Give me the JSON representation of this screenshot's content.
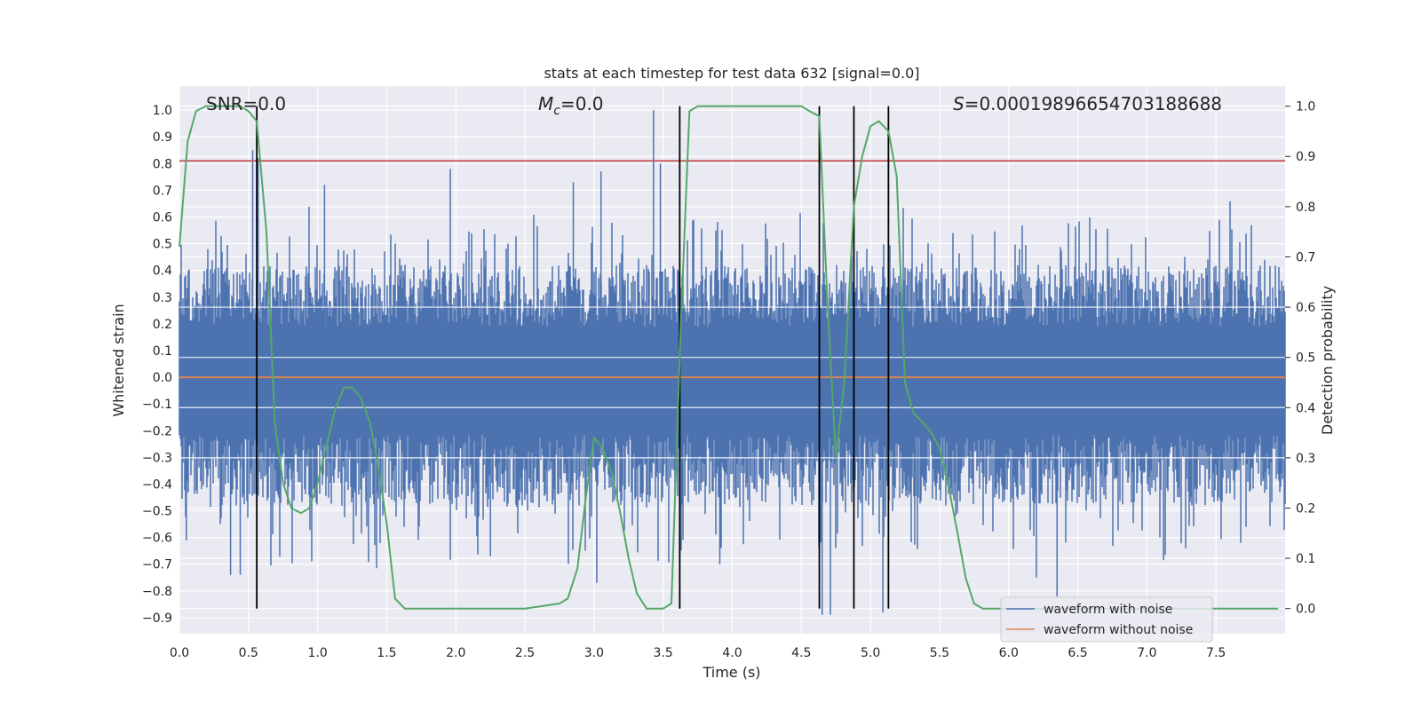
{
  "chart_data": {
    "type": "line",
    "title": "stats at each timestep for test data 632 [signal=0.0]",
    "xlabel": "Time (s)",
    "ylabel_left": "Whitened strain",
    "ylabel_right": "Detection probability",
    "xlim": [
      0.0,
      8.0
    ],
    "ylim_left": [
      -0.96,
      1.09
    ],
    "ylim_right": [
      -0.05,
      1.04
    ],
    "x_ticks": [
      "0.0",
      "0.5",
      "1.0",
      "1.5",
      "2.0",
      "2.5",
      "3.0",
      "3.5",
      "4.0",
      "4.5",
      "5.0",
      "5.5",
      "6.0",
      "6.5",
      "7.0",
      "7.5"
    ],
    "y_ticks_left": [
      "1.0",
      "0.9",
      "0.8",
      "0.7",
      "0.6",
      "0.5",
      "0.4",
      "0.3",
      "0.2",
      "0.1",
      "0.0",
      "-0.1",
      "-0.2",
      "-0.3",
      "-0.4",
      "-0.5",
      "-0.6",
      "-0.7",
      "-0.8",
      "-0.9"
    ],
    "y_ticks_right": [
      "1.0",
      "0.9",
      "0.8",
      "0.7",
      "0.6",
      "0.5",
      "0.4",
      "0.3",
      "0.2",
      "0.1",
      "0.0"
    ],
    "annotations": {
      "snr": "SNR=0.0",
      "mc_symbol": "M",
      "mc_sub": "c",
      "mc_value": "=0.0",
      "s_symbol": "S",
      "s_value": "=0.00019896654703188688"
    },
    "threshold": 0.81,
    "detection_markers": [
      0.56,
      3.62,
      4.63,
      4.88,
      5.13
    ],
    "noise_envelope": {
      "typical_upper": 0.42,
      "typical_lower": -0.48,
      "spikes": [
        {
          "x": 0.53,
          "y": 0.85
        },
        {
          "x": 0.57,
          "y": 0.82
        },
        {
          "x": 0.56,
          "y": 0.78
        },
        {
          "x": 1.05,
          "y": 0.72
        },
        {
          "x": 1.96,
          "y": 0.78
        },
        {
          "x": 2.85,
          "y": 0.73
        },
        {
          "x": 3.05,
          "y": 0.77
        },
        {
          "x": 3.43,
          "y": 1.0
        },
        {
          "x": 3.48,
          "y": 0.8
        },
        {
          "x": 0.37,
          "y": -0.74
        },
        {
          "x": 0.44,
          "y": -0.74
        },
        {
          "x": 0.05,
          "y": -0.61
        },
        {
          "x": 3.02,
          "y": -0.77
        },
        {
          "x": 3.91,
          "y": -0.7
        },
        {
          "x": 4.65,
          "y": -0.89
        },
        {
          "x": 4.71,
          "y": -0.89
        },
        {
          "x": 5.09,
          "y": -0.88
        },
        {
          "x": 6.35,
          "y": -0.82
        },
        {
          "x": 2.25,
          "y": -0.67
        },
        {
          "x": 6.2,
          "y": -0.75
        }
      ]
    },
    "series": [
      {
        "name": "waveform with noise",
        "color": "#4c72b0"
      },
      {
        "name": "waveform without noise",
        "color": "#dd8452",
        "values": 0.0
      },
      {
        "color": "#55a868",
        "axis": "right",
        "x": [
          0.0,
          0.06,
          0.12,
          0.19,
          0.25,
          0.31,
          0.38,
          0.44,
          0.5,
          0.56,
          0.63,
          0.69,
          0.75,
          0.81,
          0.88,
          0.94,
          1.0,
          1.06,
          1.13,
          1.19,
          1.25,
          1.31,
          1.38,
          1.44,
          1.5,
          1.56,
          1.63,
          1.69,
          1.75,
          2.0,
          2.25,
          2.5,
          2.75,
          2.81,
          2.88,
          2.94,
          3.0,
          3.06,
          3.13,
          3.19,
          3.25,
          3.31,
          3.38,
          3.44,
          3.5,
          3.56,
          3.63,
          3.69,
          3.75,
          4.0,
          4.25,
          4.5,
          4.56,
          4.63,
          4.69,
          4.75,
          4.81,
          4.88,
          4.94,
          5.0,
          5.06,
          5.13,
          5.19,
          5.25,
          5.31,
          5.38,
          5.44,
          5.5,
          5.56,
          5.63,
          5.69,
          5.75,
          5.81,
          5.88,
          5.94,
          6.0,
          7.0,
          7.5,
          7.95
        ],
        "values": [
          0.72,
          0.93,
          0.99,
          1.0,
          1.0,
          1.0,
          1.0,
          1.0,
          0.99,
          0.97,
          0.75,
          0.37,
          0.25,
          0.2,
          0.19,
          0.2,
          0.25,
          0.32,
          0.4,
          0.44,
          0.44,
          0.42,
          0.37,
          0.28,
          0.17,
          0.02,
          0.0,
          0.0,
          0.0,
          0.0,
          0.0,
          0.0,
          0.01,
          0.02,
          0.08,
          0.22,
          0.34,
          0.32,
          0.27,
          0.19,
          0.1,
          0.03,
          0.0,
          0.0,
          0.0,
          0.01,
          0.58,
          0.99,
          1.0,
          1.0,
          1.0,
          1.0,
          0.99,
          0.98,
          0.6,
          0.3,
          0.45,
          0.8,
          0.9,
          0.96,
          0.97,
          0.95,
          0.86,
          0.45,
          0.39,
          0.37,
          0.35,
          0.32,
          0.25,
          0.15,
          0.06,
          0.01,
          0.0,
          0.0,
          0.0,
          0.0,
          0.0,
          0.0,
          0.0
        ]
      }
    ],
    "legend_location": "lower right",
    "grid": true
  }
}
